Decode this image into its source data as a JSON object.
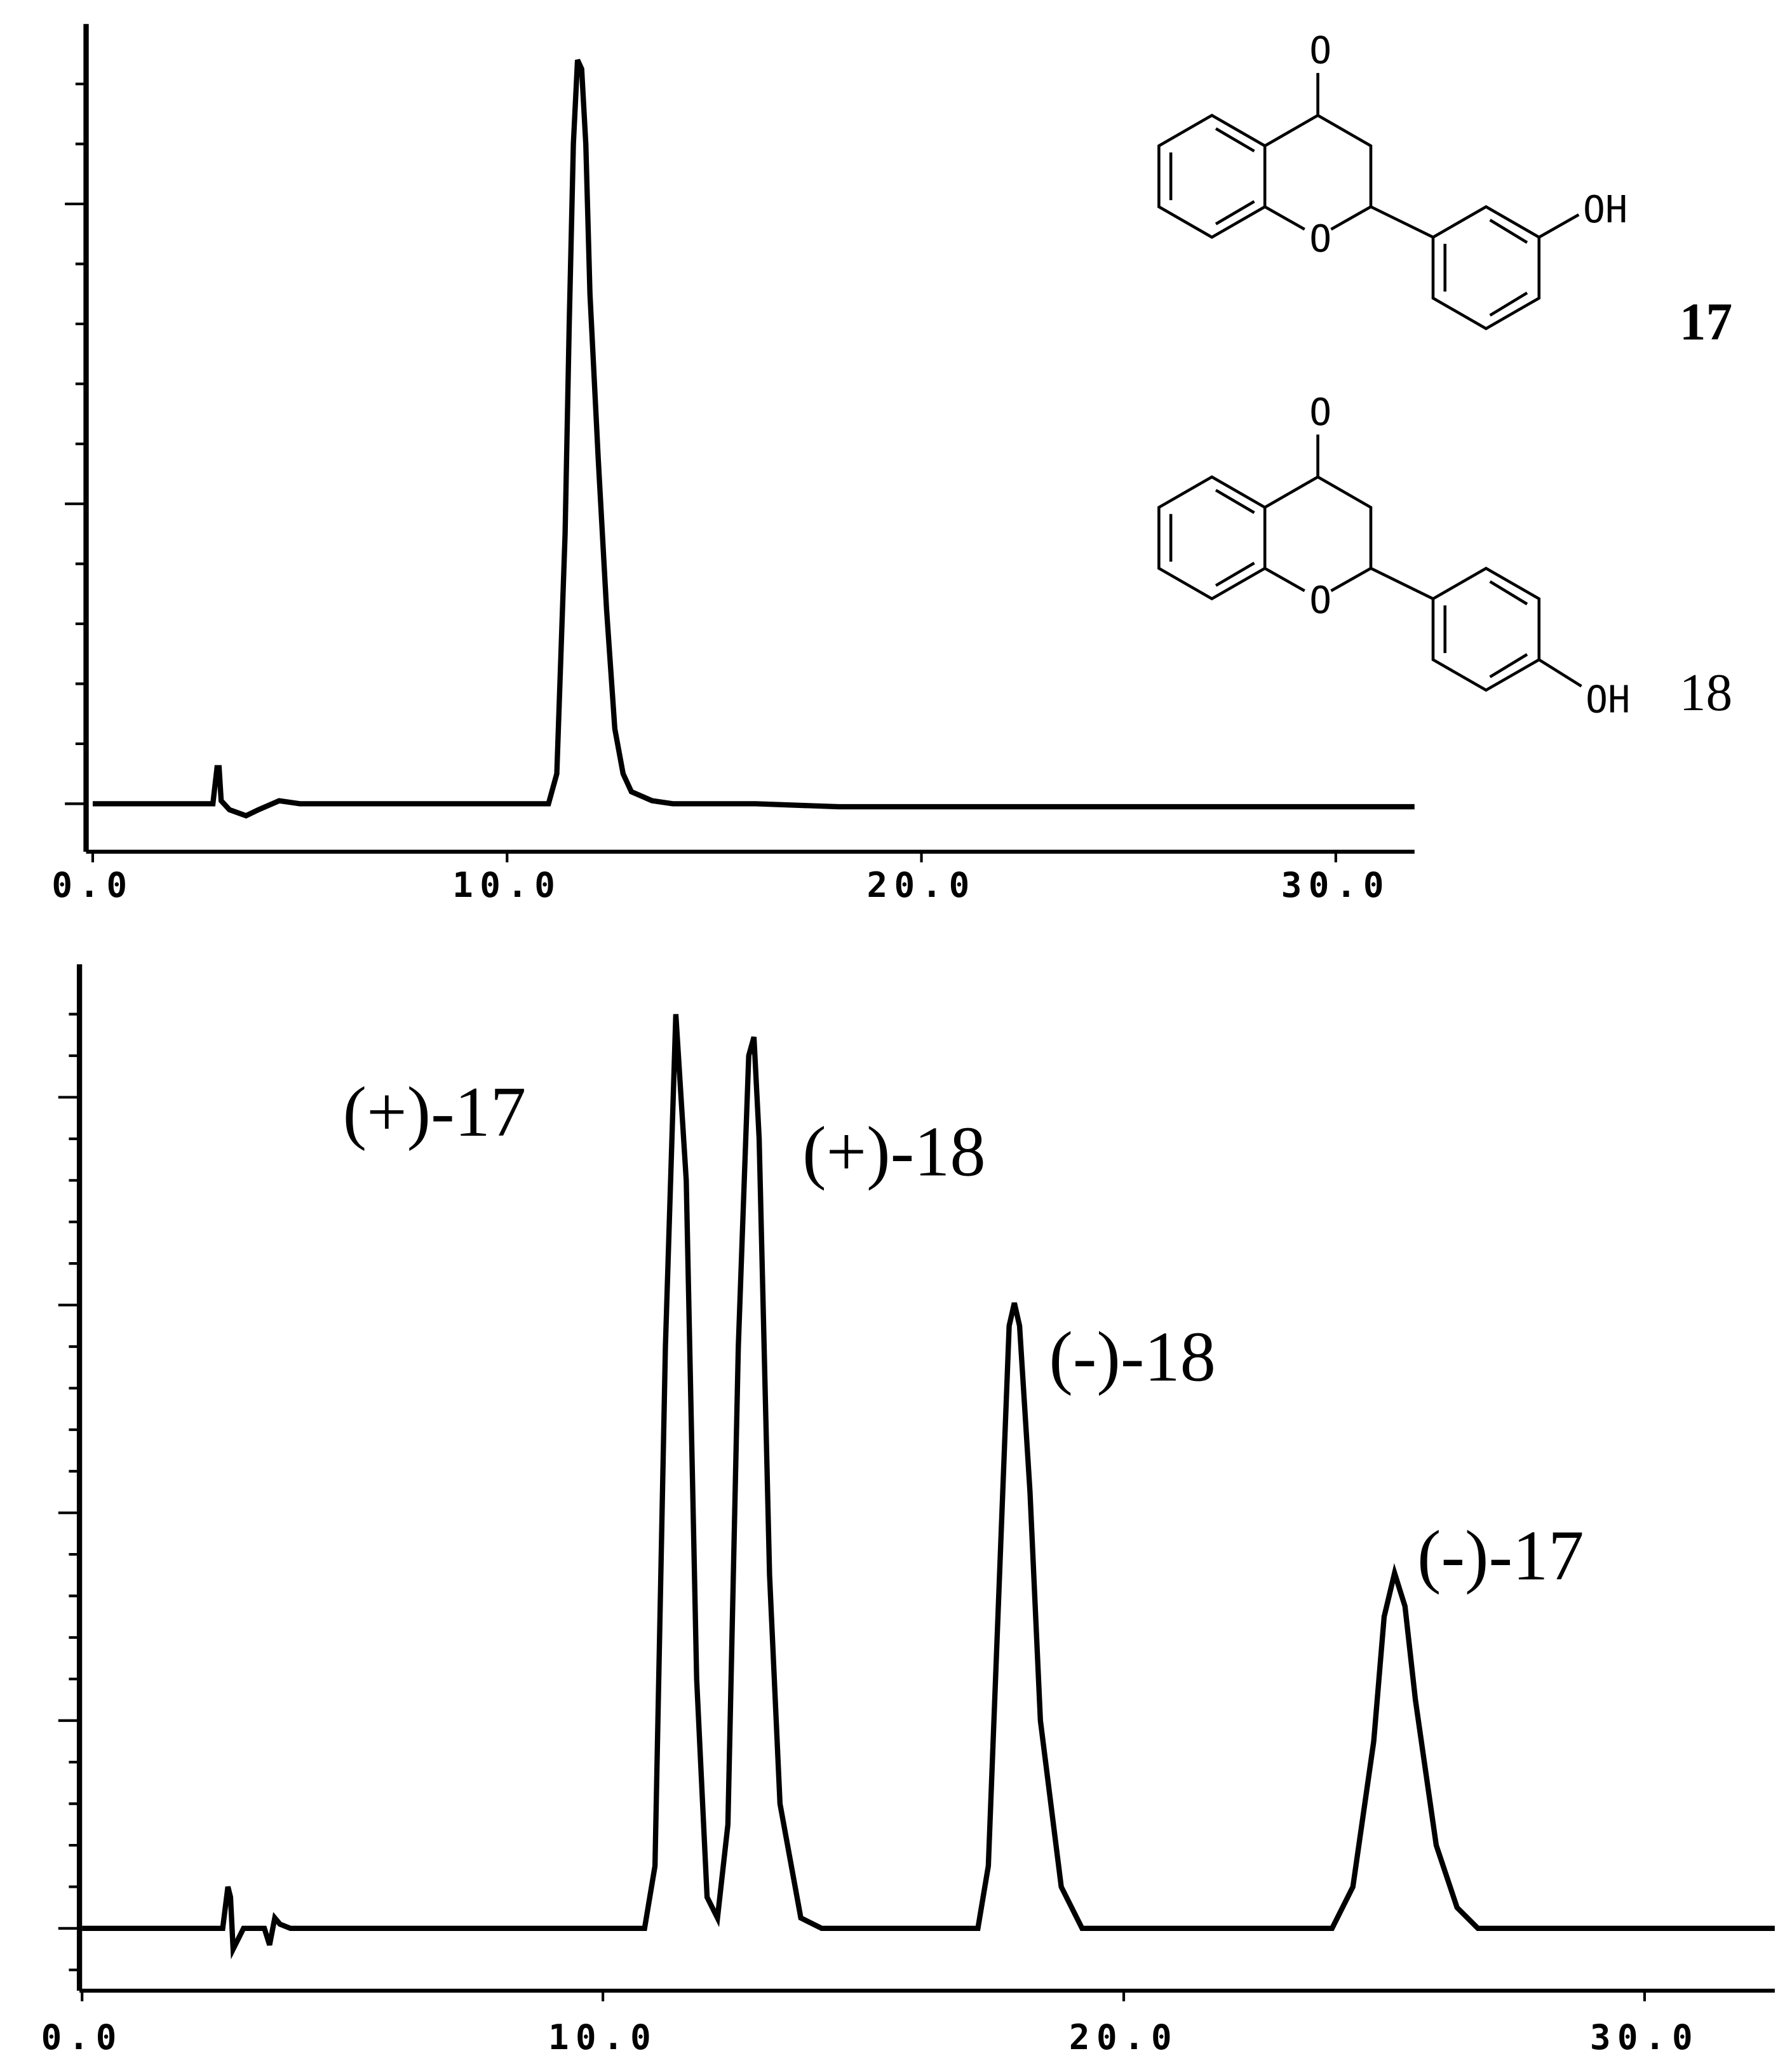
{
  "chart_data": [
    {
      "type": "line",
      "xlim": [
        -0.16,
        31.9
      ],
      "ylim": [
        -0.16,
        2.6
      ],
      "xticks": [
        {
          "value": 0,
          "label": "0.0"
        },
        {
          "value": 10,
          "label": "10.0"
        },
        {
          "value": 20,
          "label": "20.0"
        },
        {
          "value": 30,
          "label": "30.0"
        }
      ],
      "yticks": [
        0,
        0.2,
        0.4,
        0.6,
        0.8,
        1,
        1.2,
        1.4,
        1.6,
        1.8,
        2,
        2.2,
        2.4
      ],
      "series": [
        {
          "color": "#000000",
          "x": [
            0,
            2.9,
            3.0,
            3.05,
            3.1,
            3.3,
            3.7,
            4.0,
            4.5,
            5,
            8,
            10,
            11.0,
            11.2,
            11.4,
            11.5,
            11.6,
            11.7,
            11.8,
            11.9,
            12.0,
            12.2,
            12.4,
            12.6,
            12.8,
            13.0,
            13.5,
            14,
            16,
            18,
            20,
            25,
            31.9
          ],
          "values": [
            0,
            0,
            0.12,
            0.12,
            0.01,
            -0.02,
            -0.04,
            -0.02,
            0.01,
            0,
            0,
            0,
            0,
            0.1,
            0.9,
            1.6,
            2.2,
            2.48,
            2.45,
            2.2,
            1.7,
            1.15,
            0.65,
            0.25,
            0.1,
            0.04,
            0.01,
            0,
            0,
            -0.01,
            -0.01,
            -0.01,
            -0.01
          ]
        }
      ]
    },
    {
      "type": "line",
      "xlim": [
        -0.05,
        32.5
      ],
      "ylim": [
        -0.3,
        4.64
      ],
      "xticks": [
        {
          "value": 0,
          "label": "0.0"
        },
        {
          "value": 10,
          "label": "10.0"
        },
        {
          "value": 20,
          "label": "20.0"
        },
        {
          "value": 30,
          "label": "30.0"
        }
      ],
      "yticks": [
        -0.2,
        0,
        0.2,
        0.4,
        0.6,
        0.8,
        1,
        1.2,
        1.4,
        1.6,
        1.8,
        2,
        2.2,
        2.4,
        2.6,
        2.8,
        3,
        3.2,
        3.4,
        3.6,
        3.8,
        4,
        4.2,
        4.4
      ],
      "annotations": [
        "(+)-17",
        "(+)-18",
        "(-)-18",
        "(-)-17"
      ],
      "series": [
        {
          "color": "#000000",
          "x": [
            0,
            2.7,
            2.8,
            2.85,
            2.9,
            3.0,
            3.1,
            3.5,
            3.6,
            3.7,
            3.8,
            4,
            10.8,
            11.0,
            11.2,
            11.4,
            11.6,
            11.8,
            12.0,
            12.2,
            12.4,
            12.6,
            12.8,
            12.9,
            13.0,
            13.2,
            13.4,
            13.8,
            14.2,
            17.2,
            17.4,
            17.6,
            17.8,
            17.9,
            18.0,
            18.2,
            18.4,
            18.8,
            19.2,
            24.0,
            24.4,
            24.8,
            25.0,
            25.2,
            25.4,
            25.6,
            26.0,
            26.4,
            26.8,
            32.5
          ],
          "values": [
            0,
            0,
            0.2,
            0.15,
            -0.1,
            -0.05,
            0,
            0,
            -0.08,
            0.05,
            0.02,
            0,
            0,
            0.3,
            2.8,
            4.4,
            3.6,
            1.2,
            0.15,
            0.05,
            0.5,
            2.8,
            4.2,
            4.29,
            3.8,
            1.7,
            0.6,
            0.05,
            0,
            0,
            0.3,
            1.6,
            2.9,
            3.01,
            2.9,
            2.1,
            1.0,
            0.2,
            0,
            0,
            0.2,
            0.9,
            1.5,
            1.71,
            1.55,
            1.1,
            0.4,
            0.1,
            0,
            0
          ]
        }
      ]
    }
  ],
  "structures": [
    {
      "atoms": [
        "O",
        "O",
        "OH"
      ],
      "label": "17"
    },
    {
      "atoms": [
        "O",
        "O",
        "OH"
      ],
      "label": "18"
    }
  ]
}
